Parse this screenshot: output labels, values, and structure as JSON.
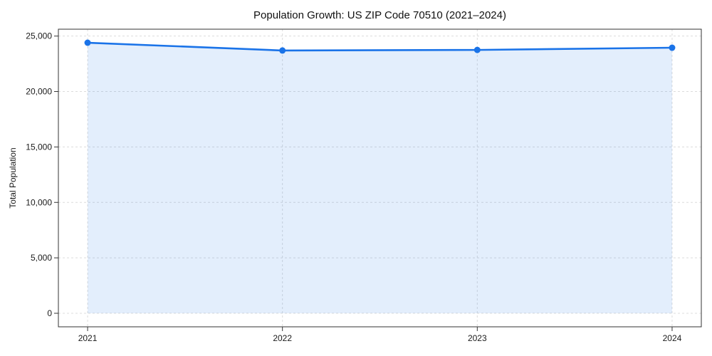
{
  "figure": {
    "background": "#ffffff"
  },
  "chart_data": {
    "type": "line",
    "title": "Population Growth: US ZIP Code 70510 (2021–2024)",
    "xlabel": "",
    "ylabel": "Total Population",
    "x": [
      2021,
      2022,
      2023,
      2024
    ],
    "x_tick_labels": [
      "2021",
      "2022",
      "2023",
      "2024"
    ],
    "series": [
      {
        "name": "Total Population",
        "values": [
          24400,
          23700,
          23750,
          23950
        ]
      }
    ],
    "y_ticks": [
      0,
      5000,
      10000,
      15000,
      20000,
      25000
    ],
    "y_tick_labels": [
      "0",
      "5,000",
      "10,000",
      "15,000",
      "20,000",
      "25,000"
    ],
    "xlim": [
      2020.85,
      2024.15
    ],
    "ylim": [
      -1220,
      25620
    ],
    "grid": true,
    "grid_style": "dashed",
    "legend": "none",
    "area_fill": true,
    "marker": "circle",
    "colors": {
      "line": "#1a73e8",
      "marker": "#1a73e8",
      "area_fill": "rgba(26,115,232,0.12)",
      "grid": "#dcdcdc",
      "spine": "#333333",
      "tick_label": "#1a1a1a",
      "title": "#111111"
    }
  }
}
